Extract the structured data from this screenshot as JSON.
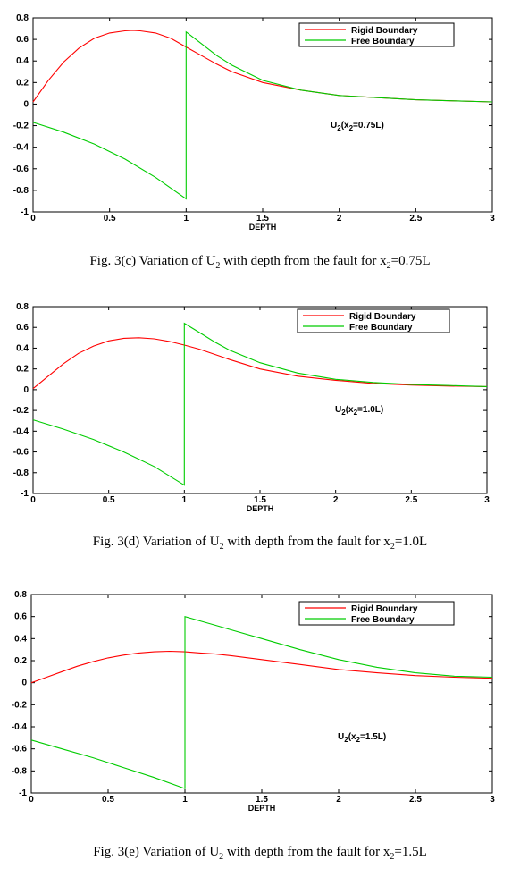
{
  "chart_data": [
    {
      "type": "line",
      "xlabel": "DEPTH",
      "ylabel": "",
      "xlim": [
        0,
        3
      ],
      "ylim": [
        -1,
        0.8
      ],
      "xticks": [
        "0",
        "0.5",
        "1",
        "1.5",
        "2",
        "2.5",
        "3"
      ],
      "yticks": [
        "-1",
        "-0.8",
        "-0.6",
        "-0.4",
        "-0.2",
        "0",
        "0.2",
        "0.4",
        "0.6",
        "0.8"
      ],
      "grid": false,
      "legend_position": "top-right",
      "annotation": {
        "pre": "U",
        "sub1": "2",
        "mid": "(x",
        "sub2": "2",
        "post": "=0.75L)"
      },
      "caption": {
        "pre": "Fig. 3(c) Variation of  U",
        "sub1": "2",
        "mid": " with depth from  the  fault  for  x",
        "sub2": "2",
        "post": "=0.75L"
      },
      "series": [
        {
          "name": "Rigid Boundary",
          "color": "#ff0000",
          "x": [
            0,
            0.1,
            0.2,
            0.3,
            0.4,
            0.5,
            0.6,
            0.65,
            0.7,
            0.8,
            0.9,
            1.0,
            1.1,
            1.2,
            1.3,
            1.5,
            1.75,
            2.0,
            2.25,
            2.5,
            2.75,
            3.0
          ],
          "y": [
            0.02,
            0.22,
            0.39,
            0.52,
            0.61,
            0.66,
            0.68,
            0.685,
            0.68,
            0.66,
            0.61,
            0.53,
            0.45,
            0.37,
            0.3,
            0.2,
            0.13,
            0.08,
            0.06,
            0.04,
            0.03,
            0.02
          ]
        },
        {
          "name": "Free Boundary",
          "color": "#00cc00",
          "x": [
            0,
            0.2,
            0.4,
            0.6,
            0.8,
            1.0,
            1.0,
            1.1,
            1.2,
            1.3,
            1.5,
            1.75,
            2.0,
            2.25,
            2.5,
            2.75,
            3.0
          ],
          "y": [
            -0.17,
            -0.26,
            -0.37,
            -0.51,
            -0.68,
            -0.88,
            0.67,
            0.56,
            0.45,
            0.36,
            0.22,
            0.13,
            0.08,
            0.06,
            0.04,
            0.03,
            0.02
          ]
        }
      ]
    },
    {
      "type": "line",
      "xlabel": "DEPTH",
      "ylabel": "",
      "xlim": [
        0,
        3
      ],
      "ylim": [
        -1,
        0.8
      ],
      "xticks": [
        "0",
        "0.5",
        "1",
        "1.5",
        "2",
        "2.5",
        "3"
      ],
      "yticks": [
        "-1",
        "-0.8",
        "-0.6",
        "-0.4",
        "-0.2",
        "0",
        "0.2",
        "0.4",
        "0.6",
        "0.8"
      ],
      "grid": false,
      "legend_position": "top-right",
      "annotation": {
        "pre": "U",
        "sub1": "2",
        "mid": "(x",
        "sub2": "2",
        "post": "=1.0L)"
      },
      "caption": {
        "pre": "Fig. 3(d) Variation of  U",
        "sub1": "2",
        "mid": " with depth  from  the  fault  for  x",
        "sub2": "2",
        "post": "=1.0L"
      },
      "series": [
        {
          "name": "Rigid Boundary",
          "color": "#ff0000",
          "x": [
            0,
            0.1,
            0.2,
            0.3,
            0.4,
            0.5,
            0.6,
            0.7,
            0.8,
            0.9,
            1.0,
            1.1,
            1.2,
            1.3,
            1.5,
            1.75,
            2.0,
            2.25,
            2.5,
            2.75,
            3.0
          ],
          "y": [
            0.01,
            0.13,
            0.25,
            0.35,
            0.42,
            0.47,
            0.495,
            0.5,
            0.49,
            0.465,
            0.43,
            0.39,
            0.34,
            0.29,
            0.2,
            0.13,
            0.09,
            0.06,
            0.045,
            0.035,
            0.03
          ]
        },
        {
          "name": "Free Boundary",
          "color": "#00cc00",
          "x": [
            0,
            0.2,
            0.4,
            0.6,
            0.8,
            1.0,
            1.0,
            1.1,
            1.2,
            1.3,
            1.5,
            1.75,
            2.0,
            2.25,
            2.5,
            2.75,
            3.0
          ],
          "y": [
            -0.29,
            -0.38,
            -0.48,
            -0.6,
            -0.74,
            -0.92,
            0.64,
            0.55,
            0.46,
            0.38,
            0.26,
            0.16,
            0.1,
            0.07,
            0.05,
            0.04,
            0.03
          ]
        }
      ]
    },
    {
      "type": "line",
      "xlabel": "DEPTH",
      "ylabel": "",
      "xlim": [
        0,
        3
      ],
      "ylim": [
        -1,
        0.8
      ],
      "xticks": [
        "0",
        "0.5",
        "1",
        "1.5",
        "2",
        "2.5",
        "3"
      ],
      "yticks": [
        "-1",
        "-0.8",
        "-0.6",
        "-0.4",
        "-0.2",
        "0",
        "0.2",
        "0.4",
        "0.6",
        "0.8"
      ],
      "grid": false,
      "legend_position": "top-right",
      "annotation": {
        "pre": "U",
        "sub1": "2",
        "mid": "(x",
        "sub2": "2",
        "post": "=1.5L)"
      },
      "caption": {
        "pre": "Fig. 3(e) Variation of   U",
        "sub1": "2",
        "mid": " with depth  from  the  fault  for  x",
        "sub2": "2",
        "post": "=1.5L"
      },
      "series": [
        {
          "name": "Rigid Boundary",
          "color": "#ff0000",
          "x": [
            0,
            0.1,
            0.2,
            0.3,
            0.4,
            0.5,
            0.6,
            0.7,
            0.8,
            0.9,
            1.0,
            1.1,
            1.2,
            1.3,
            1.5,
            1.75,
            2.0,
            2.25,
            2.5,
            2.75,
            3.0
          ],
          "y": [
            0.0,
            0.05,
            0.1,
            0.15,
            0.19,
            0.225,
            0.25,
            0.27,
            0.28,
            0.285,
            0.28,
            0.27,
            0.26,
            0.245,
            0.21,
            0.165,
            0.12,
            0.09,
            0.065,
            0.05,
            0.04
          ]
        },
        {
          "name": "Free Boundary",
          "color": "#00cc00",
          "x": [
            0,
            0.2,
            0.4,
            0.6,
            0.8,
            1.0,
            1.0,
            1.1,
            1.2,
            1.3,
            1.5,
            1.75,
            2.0,
            2.25,
            2.5,
            2.75,
            3.0
          ],
          "y": [
            -0.52,
            -0.6,
            -0.68,
            -0.77,
            -0.86,
            -0.96,
            0.6,
            0.56,
            0.52,
            0.48,
            0.4,
            0.3,
            0.21,
            0.14,
            0.09,
            0.06,
            0.05
          ]
        }
      ]
    }
  ]
}
